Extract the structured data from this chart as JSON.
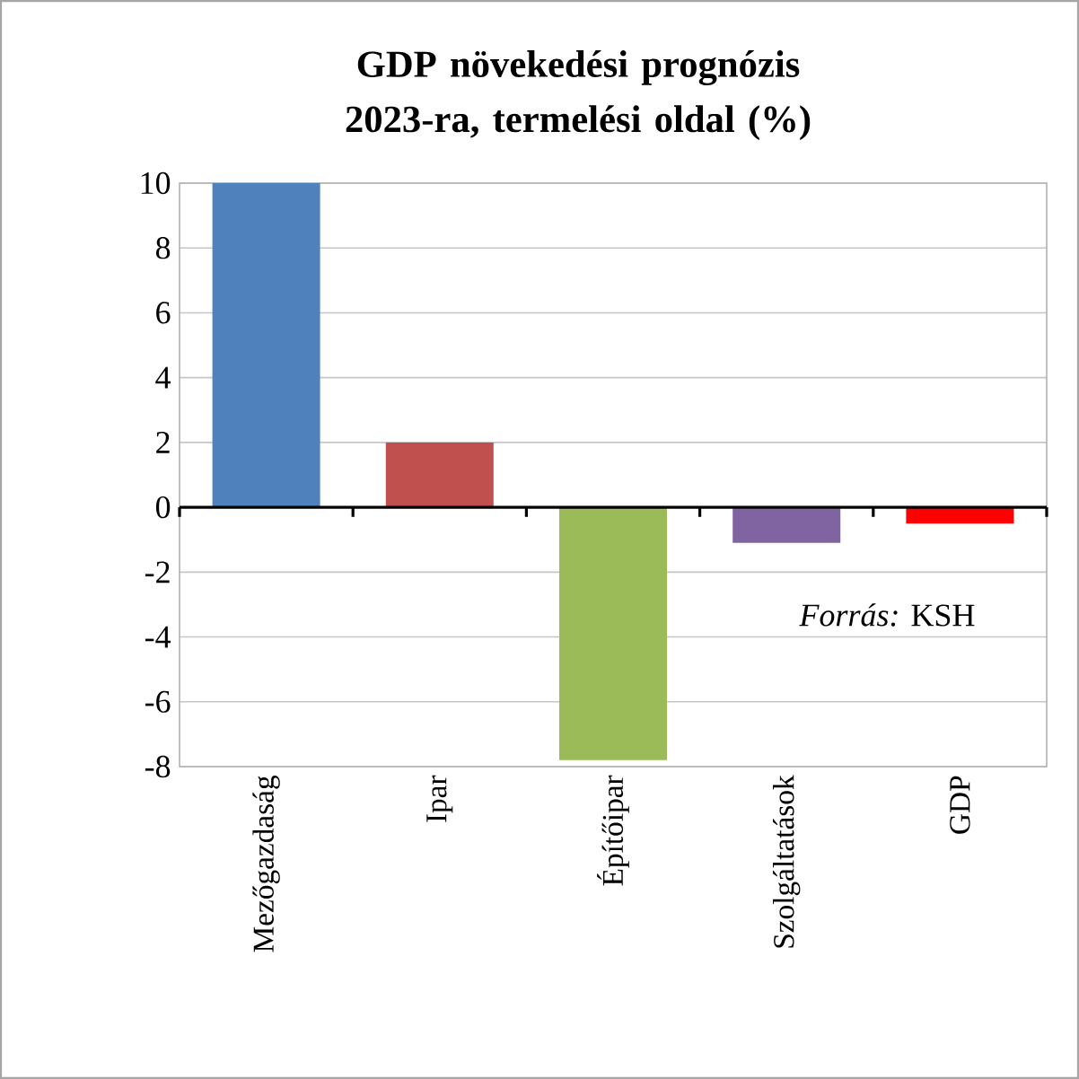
{
  "chart_data": {
    "type": "bar",
    "title": "GDP növekedési prognózis 2023-ra, termelési oldal (%)",
    "categories": [
      "Mezőgazdaság",
      "Ipar",
      "Építőipar",
      "Szolgáltatások",
      "GDP"
    ],
    "values": [
      10,
      2,
      -7.8,
      -1.1,
      -0.5
    ],
    "colors": [
      "#4f81bd",
      "#c0504d",
      "#9bbb59",
      "#8064a2",
      "#ff0000"
    ],
    "ylim": [
      -8,
      10
    ],
    "yticks": [
      -8,
      -6,
      -4,
      -2,
      0,
      2,
      4,
      6,
      8,
      10
    ],
    "grid": "y",
    "annotations": [
      "*Forrás:* KSH"
    ]
  }
}
